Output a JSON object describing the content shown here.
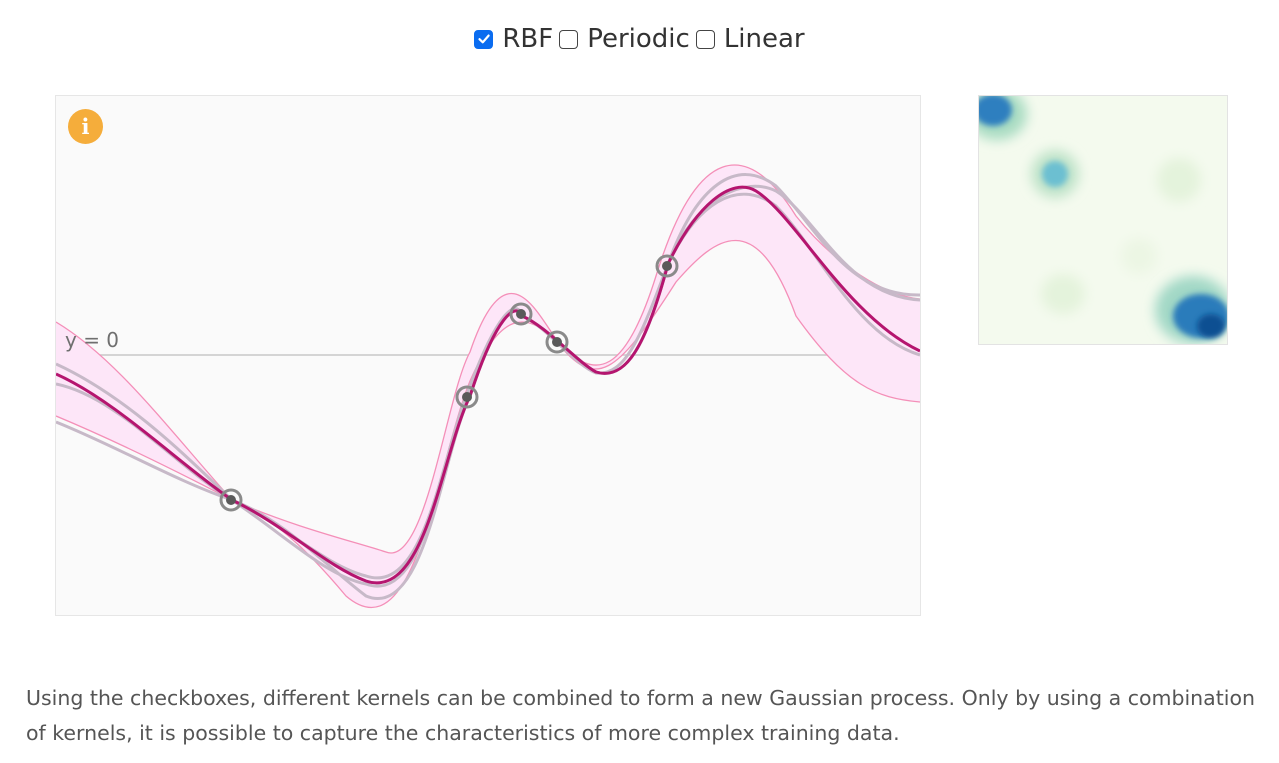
{
  "kernels": [
    {
      "label": "RBF",
      "checked": true
    },
    {
      "label": "Periodic",
      "checked": false
    },
    {
      "label": "Linear",
      "checked": false
    }
  ],
  "plot": {
    "zero_label": "y = 0",
    "info_icon": "i",
    "colors": {
      "mean": "#b5156f",
      "band_fill": "#fde6f8",
      "band_edge": "#f48fb8",
      "sample": "#c7b9c8",
      "point": "#5a5a5a",
      "zero_line": "#c8c8c8"
    }
  },
  "heatmap": {
    "colormap": "green-blue"
  },
  "caption": "Using the checkboxes, different kernels can be combined to form a new Gaussian process. Only by using a combination of kernels, it is possible to capture the characteristics of more complex training data."
}
